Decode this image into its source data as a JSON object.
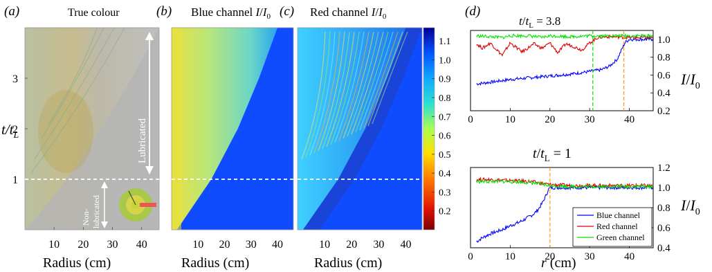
{
  "panel_labels": {
    "a": "(a)",
    "b": "(b)",
    "c": "(c)",
    "d": "(d)"
  },
  "heatmap_panels": {
    "a_title": "True colour",
    "b_title": "Blue channel I/I0",
    "c_title": "Red channel I/I0",
    "xlabel": "Radius (cm)",
    "ylabel": "t/tL",
    "annotation_lubricated": "Lubricated",
    "annotation_non_lubricated_1": "Non-",
    "annotation_non_lubricated_2": "lubricated"
  },
  "colors": {
    "blue_channel": "#0000ff",
    "red_channel": "#e00000",
    "green_channel": "#00e000",
    "front_marker": "#ff9900",
    "threshold_line": "#ffffff"
  },
  "chart_data": [
    {
      "type": "heatmap",
      "panel": "a",
      "title": "True colour",
      "xlabel": "Radius (cm)",
      "ylabel": "t/tL",
      "xticks": [
        10,
        20,
        30,
        40
      ],
      "yticks": [
        1,
        2,
        3
      ],
      "xlim": [
        0,
        46
      ],
      "ylim": [
        0,
        4
      ],
      "threshold_t": 1
    },
    {
      "type": "heatmap",
      "panel": "b",
      "title": "Blue channel I/I0",
      "xlabel": "Radius (cm)",
      "xticks": [
        10,
        20,
        30,
        40
      ],
      "xlim": [
        0,
        46
      ],
      "ylim": [
        0,
        4
      ],
      "threshold_t": 1,
      "front": {
        "t": [
          0,
          1,
          2,
          3,
          4
        ],
        "r": [
          2,
          15,
          25,
          33,
          40
        ]
      }
    },
    {
      "type": "heatmap",
      "panel": "c",
      "title": "Red channel I/I0",
      "xlabel": "Radius (cm)",
      "xticks": [
        10,
        20,
        30,
        40
      ],
      "xlim": [
        0,
        46
      ],
      "ylim": [
        0,
        4
      ],
      "threshold_t": 1,
      "front": {
        "t": [
          0,
          1,
          2,
          3,
          4
        ],
        "r": [
          2,
          15,
          25,
          33,
          40
        ]
      }
    },
    {
      "type": "colorbar",
      "ticks": [
        0.2,
        0.3,
        0.4,
        0.5,
        0.6,
        0.7,
        0.8,
        0.9,
        1.0,
        1.1
      ],
      "tick_labels": [
        "0.2",
        "0.3",
        "0.4",
        "0.5",
        "0.6",
        "0.7",
        "0.8",
        "0.9",
        "1.0",
        "1.1"
      ],
      "range": [
        0.1,
        1.17
      ]
    },
    {
      "type": "line",
      "panel": "d-top",
      "title": "t/tL = 3.8",
      "xlabel": "",
      "ylabel": "I/I0",
      "xlim": [
        0,
        46
      ],
      "ylim": [
        0.2,
        1.1
      ],
      "xticks": [
        0,
        10,
        20,
        30,
        40
      ],
      "yticks": [
        0.2,
        0.4,
        0.6,
        0.8,
        1.0
      ],
      "ytick_labels": [
        "0.2",
        "0.4",
        "0.6",
        "0.8",
        "1.0"
      ],
      "markers": [
        {
          "x": 30.8,
          "color": "green"
        },
        {
          "x": 38.6,
          "color": "orange"
        }
      ],
      "series": [
        {
          "name": "Blue channel",
          "color": "blue",
          "x": [
            1.5,
            5,
            10,
            15,
            20,
            25,
            30,
            33,
            35,
            37,
            38,
            39,
            40,
            42,
            44,
            46
          ],
          "y": [
            0.5,
            0.52,
            0.55,
            0.57,
            0.59,
            0.61,
            0.64,
            0.66,
            0.7,
            0.78,
            0.88,
            0.97,
            1.0,
            1.0,
            1.0,
            1.0
          ]
        },
        {
          "name": "Red channel",
          "color": "red",
          "x": [
            1.5,
            3,
            5,
            8,
            10,
            13,
            16,
            18,
            20,
            22,
            24,
            26,
            28,
            30,
            32,
            34,
            36,
            40,
            46
          ],
          "y": [
            0.95,
            0.9,
            0.96,
            0.82,
            0.96,
            0.86,
            0.95,
            0.9,
            0.96,
            0.85,
            0.95,
            0.92,
            0.88,
            0.96,
            1.02,
            1.03,
            1.03,
            1.02,
            1.02
          ]
        },
        {
          "name": "Green channel",
          "color": "green",
          "x": [
            1.5,
            5,
            8,
            10,
            15,
            18,
            20,
            25,
            30,
            35,
            40,
            46
          ],
          "y": [
            1.04,
            1.03,
            1.02,
            1.04,
            1.04,
            1.02,
            1.04,
            1.03,
            1.04,
            1.04,
            1.04,
            1.04
          ]
        }
      ]
    },
    {
      "type": "line",
      "panel": "d-bottom",
      "title": "t/tL = 1",
      "xlabel": "r (cm)",
      "ylabel": "I/I0",
      "xlim": [
        0,
        46
      ],
      "ylim": [
        0.4,
        1.2
      ],
      "xticks": [
        0,
        10,
        20,
        30,
        40
      ],
      "yticks": [
        0.4,
        0.6,
        0.8,
        1.0,
        1.2
      ],
      "ytick_labels": [
        "0.4",
        "0.6",
        "0.8",
        "1.0",
        "1.2"
      ],
      "markers": [
        {
          "x": 20,
          "color": "orange"
        }
      ],
      "legend": "bottom-right",
      "series": [
        {
          "name": "Blue channel",
          "color": "blue",
          "x": [
            1.5,
            3,
            5,
            8,
            10,
            12,
            14,
            16,
            17,
            18,
            19,
            19.5,
            20,
            22,
            25,
            30,
            35,
            40,
            46
          ],
          "y": [
            0.46,
            0.5,
            0.54,
            0.58,
            0.62,
            0.65,
            0.69,
            0.74,
            0.78,
            0.84,
            0.92,
            0.97,
            1.0,
            1.0,
            1.0,
            1.0,
            1.0,
            1.0,
            1.0
          ]
        },
        {
          "name": "Red channel",
          "color": "red",
          "x": [
            1.5,
            5,
            10,
            15,
            20,
            25,
            30,
            35,
            40,
            46
          ],
          "y": [
            1.08,
            1.08,
            1.07,
            1.06,
            1.03,
            1.02,
            1.02,
            1.02,
            1.02,
            1.02
          ]
        },
        {
          "name": "Green channel",
          "color": "green",
          "x": [
            1.5,
            5,
            10,
            15,
            20,
            25,
            30,
            35,
            40,
            46
          ],
          "y": [
            1.06,
            1.06,
            1.06,
            1.05,
            1.02,
            1.01,
            1.01,
            1.01,
            1.01,
            1.01
          ]
        }
      ]
    }
  ]
}
